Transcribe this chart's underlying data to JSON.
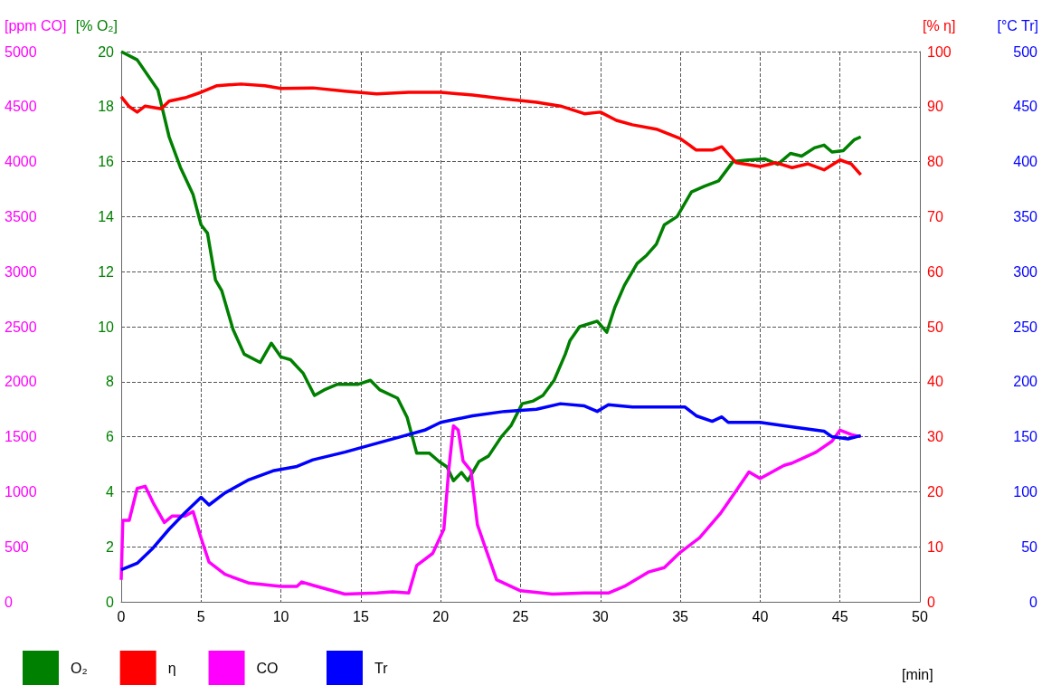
{
  "chart_data": [
    {
      "type": "line",
      "xlabel": "[min]",
      "ylabel": "[% O₂]",
      "y2label": "[% η]",
      "y3label": "[ppm CO]",
      "xlim": [
        0,
        50
      ],
      "xticks": [
        0,
        5,
        10,
        15,
        20,
        25,
        30,
        35,
        40,
        45,
        50
      ],
      "ylim": [
        0,
        20
      ],
      "yticks": [
        0,
        2,
        4,
        6,
        8,
        10,
        12,
        14,
        16,
        18,
        20
      ],
      "y2lim": [
        0,
        100
      ],
      "y2ticks": [
        0,
        10,
        20,
        30,
        40,
        50,
        60,
        70,
        80,
        90,
        100
      ],
      "y3lim": [
        0,
        5000
      ],
      "y3ticks": [
        0,
        500,
        1000,
        1500,
        2000,
        2500,
        3000,
        3500,
        4000,
        4500,
        5000
      ],
      "grid": true,
      "legend": "bottom left",
      "marker": "none",
      "line_style": "solid",
      "series": [
        {
          "name": "O₂",
          "color": "#008000",
          "x": [
            0,
            1,
            2.3,
            3,
            3.7,
            4.5,
            5,
            5.4,
            5.9,
            6.3,
            7,
            7.7,
            8.7,
            9.4,
            10,
            10.6,
            11.4,
            12.1,
            12.7,
            13.5,
            14.8,
            15.6,
            16.2,
            17.3,
            17.9,
            18.5,
            19.3,
            19.9,
            20.4,
            20.8,
            21.3,
            21.7,
            22.4,
            23,
            23.8,
            24.4,
            25.1,
            25.8,
            26.4,
            27.1,
            27.8,
            28.1,
            28.7,
            29.8,
            30.4,
            30.9,
            31.5,
            32.3,
            32.9,
            33.5,
            34,
            34.8,
            35.7,
            36.5,
            37.4,
            38.3,
            39.1,
            40.3,
            41.1,
            41.9,
            42.6,
            43.4,
            44,
            44.5,
            45.2,
            45.9,
            46.3
          ],
          "values": [
            20,
            19.7,
            18.6,
            16.9,
            15.8,
            14.8,
            13.7,
            13.4,
            11.7,
            11.3,
            9.9,
            9,
            8.7,
            9.4,
            8.9,
            8.8,
            8.3,
            7.5,
            7.7,
            7.9,
            7.9,
            8.05,
            7.7,
            7.4,
            6.7,
            5.4,
            5.4,
            5.1,
            4.9,
            4.4,
            4.7,
            4.4,
            5.1,
            5.3,
            6,
            6.4,
            7.2,
            7.3,
            7.5,
            8.05,
            9,
            9.5,
            10,
            10.2,
            9.8,
            10.7,
            11.5,
            12.3,
            12.6,
            13,
            13.7,
            14,
            14.9,
            15.1,
            15.3,
            16,
            16.05,
            16.1,
            15.9,
            16.3,
            16.2,
            16.5,
            16.6,
            16.35,
            16.4,
            16.8,
            16.9
          ]
        },
        {
          "name": "η",
          "color": "#ff0000",
          "axis": "y2",
          "x": [
            0,
            0.5,
            1,
            1.5,
            2.5,
            3,
            4,
            5,
            6,
            7.5,
            9,
            10,
            12,
            14,
            16,
            18,
            20,
            22,
            24,
            26,
            27.5,
            29,
            30,
            31,
            32,
            33.5,
            35,
            36,
            37,
            37.6,
            38.5,
            40,
            41,
            42,
            43,
            44,
            45,
            45.7,
            46.3
          ],
          "values": [
            91.8,
            90,
            89,
            90.1,
            89.6,
            91,
            91.6,
            92.6,
            93.8,
            94.1,
            93.8,
            93.3,
            93.4,
            92.8,
            92.3,
            92.6,
            92.6,
            92.1,
            91.4,
            90.8,
            90.1,
            88.7,
            89,
            87.5,
            86.7,
            85.9,
            84.2,
            82.1,
            82.1,
            82.7,
            79.8,
            79.1,
            79.8,
            78.9,
            79.6,
            78.5,
            80.3,
            79.6,
            77.6
          ]
        },
        {
          "name": "CO",
          "color": "#ff00ff",
          "axis": "y3",
          "x": [
            0,
            0.1,
            0.5,
            1,
            1.5,
            2,
            2.7,
            3.2,
            4,
            4.5,
            5,
            5.5,
            6.5,
            8,
            10,
            11,
            11.3,
            12,
            14,
            16,
            17,
            18,
            18.5,
            19.5,
            20.2,
            20.5,
            20.8,
            21.1,
            21.4,
            21.9,
            22.3,
            22.8,
            23.5,
            25,
            27,
            29,
            30.5,
            31.5,
            33,
            34,
            35,
            36.2,
            37.5,
            38.5,
            39.3,
            40,
            41.5,
            42,
            43.5,
            44.5,
            45,
            45.7,
            46.3
          ],
          "values": [
            200,
            740,
            740,
            1030,
            1050,
            900,
            720,
            780,
            780,
            820,
            580,
            360,
            250,
            170,
            140,
            140,
            180,
            150,
            70,
            80,
            90,
            80,
            330,
            440,
            660,
            1190,
            1600,
            1560,
            1280,
            1190,
            700,
            490,
            200,
            100,
            70,
            80,
            80,
            140,
            270,
            310,
            450,
            580,
            800,
            1010,
            1180,
            1120,
            1240,
            1260,
            1360,
            1460,
            1560,
            1520,
            1500
          ]
        }
      ]
    },
    {
      "type": "line",
      "y2label": "[°C Tr]",
      "xlim": [
        0,
        50
      ],
      "y2lim": [
        0,
        500
      ],
      "y2ticks": [
        0,
        50,
        100,
        150,
        200,
        250,
        300,
        350,
        400,
        450,
        500
      ],
      "tick_labels": "y",
      "legend": "bottom left",
      "marker": "none",
      "line_style": "solid",
      "series": [
        {
          "name": "Tr",
          "color": "#0000ff",
          "axis": "y2",
          "x": [
            0,
            1,
            2,
            3,
            4,
            5,
            5.5,
            6.5,
            8,
            9.5,
            11,
            12,
            14,
            16,
            17.5,
            19,
            20,
            22,
            24,
            26,
            27.5,
            29,
            29.8,
            30.5,
            32,
            34,
            35.3,
            36,
            37,
            37.6,
            38,
            40,
            42,
            44,
            44.5,
            45.5,
            46.3
          ],
          "values": [
            29,
            35,
            49,
            66,
            81,
            95,
            88,
            99,
            111,
            119,
            123,
            129,
            136,
            144,
            150,
            156,
            163,
            169,
            173,
            175,
            180,
            178,
            173,
            179,
            177,
            177,
            177,
            169,
            164,
            168,
            163,
            163,
            159,
            155,
            150,
            148,
            151
          ]
        }
      ]
    }
  ]
}
